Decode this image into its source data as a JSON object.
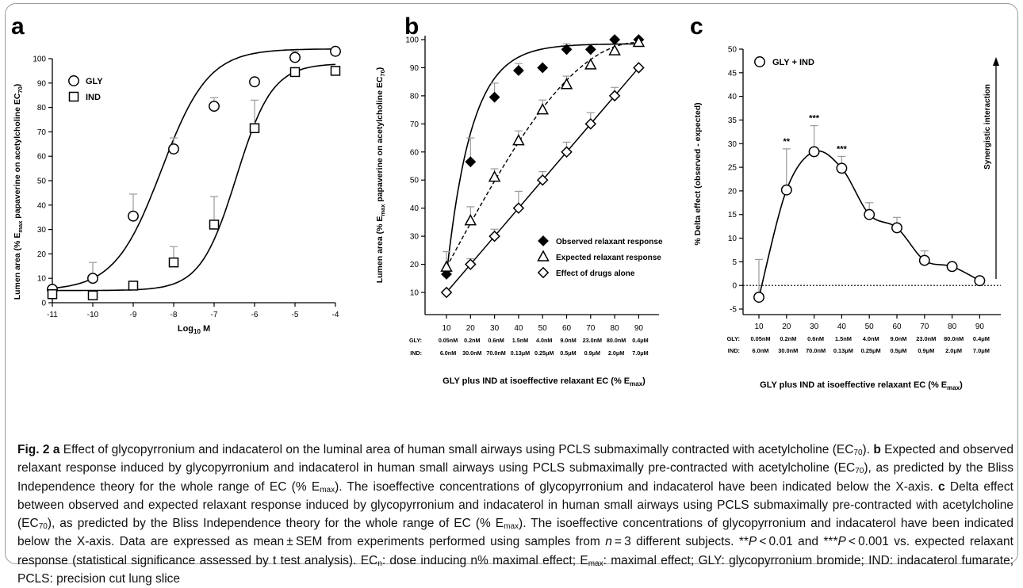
{
  "chart_data": [
    {
      "panel": "a",
      "type": "scatter",
      "xlabel": "Log10 M",
      "ylabel": "Lumen area (% Emax papaverine on acetylcholine EC70)",
      "xlim": [
        -11,
        -4
      ],
      "ylim": [
        0,
        100
      ],
      "xticks": [
        -11,
        -10,
        -9,
        -8,
        -7,
        -6,
        -5,
        -4
      ],
      "yticks": [
        0,
        10,
        20,
        30,
        40,
        50,
        60,
        70,
        80,
        90,
        100
      ],
      "legend": {
        "placement": "top-left"
      },
      "series": [
        {
          "name": "GLY",
          "marker": "circle",
          "x": [
            -11,
            -10,
            -9,
            -8,
            -7,
            -6,
            -5,
            -4
          ],
          "y": [
            5.5,
            10,
            35.5,
            63,
            80.5,
            90.5,
            100.5,
            103
          ],
          "err": [
            0,
            6.5,
            9,
            4.5,
            3.5,
            0,
            2.5,
            0
          ],
          "fit": {
            "bottom": 5,
            "top": 104,
            "logEC50": -8.3,
            "hill": 0.75
          }
        },
        {
          "name": "IND",
          "marker": "square",
          "x": [
            -11,
            -10,
            -9,
            -8,
            -7,
            -6,
            -5,
            -4
          ],
          "y": [
            3.5,
            3,
            7,
            16.5,
            32,
            71.5,
            94.5,
            95
          ],
          "err": [
            0,
            0,
            0,
            6.5,
            11.5,
            11.5,
            0,
            0
          ],
          "fit": {
            "bottom": 5,
            "top": 98,
            "logEC50": -6.45,
            "hill": 0.98
          }
        }
      ]
    },
    {
      "panel": "b",
      "type": "line",
      "xlabel": "GLY plus IND at isoeffective relaxant EC (% Emax)",
      "ylabel": "Lumen area (% Emax papaverine on acetylcholine EC70)",
      "categories": [
        "10",
        "20",
        "30",
        "40",
        "50",
        "60",
        "70",
        "80",
        "90"
      ],
      "gly_concentrations": [
        "0.05nM",
        "0.2nM",
        "0.6nM",
        "1.5nM",
        "4.0nM",
        "9.0nM",
        "23.0nM",
        "80.0nM",
        "0.4μM"
      ],
      "ind_concentrations": [
        "6.0nM",
        "30.0nM",
        "70.0nM",
        "0.13μM",
        "0.25μM",
        "0.5μM",
        "0.9μM",
        "2.0μM",
        "7.0μM"
      ],
      "ylim": [
        10,
        100
      ],
      "yticks": [
        10,
        20,
        30,
        40,
        50,
        60,
        70,
        80,
        90,
        100
      ],
      "legend": {
        "placement": "bottom-right"
      },
      "series": [
        {
          "name": "Observed relaxant response",
          "marker": "diamond-filled",
          "values": [
            16.5,
            56.5,
            79.5,
            89,
            90,
            96.5,
            96.5,
            100,
            100
          ],
          "err": [
            0,
            8.5,
            5,
            2.5,
            0,
            2,
            0,
            0,
            0
          ]
        },
        {
          "name": "Expected relaxant response",
          "marker": "triangle-open",
          "values": [
            19,
            35.5,
            51,
            64,
            75,
            84,
            91,
            96,
            99
          ],
          "err": [
            5.5,
            5,
            3,
            3.5,
            3.5,
            3,
            0,
            0,
            0
          ]
        },
        {
          "name": "Effect of drugs alone",
          "marker": "diamond-open",
          "values": [
            10,
            20,
            30,
            40,
            50,
            60,
            70,
            80,
            90
          ],
          "err": [
            0,
            2,
            2.5,
            6,
            3,
            3.5,
            4,
            3,
            0
          ]
        }
      ]
    },
    {
      "panel": "c",
      "type": "line",
      "xlabel": "GLY plus IND at isoeffective relaxant EC (% Emax)",
      "ylabel": "% Delta effect (observed - expected)",
      "categories": [
        "10",
        "20",
        "30",
        "40",
        "50",
        "60",
        "70",
        "80",
        "90"
      ],
      "gly_concentrations": [
        "0.05nM",
        "0.2nM",
        "0.6nM",
        "1.5nM",
        "4.0nM",
        "9.0nM",
        "23.0nM",
        "80.0nM",
        "0.4μM"
      ],
      "ind_concentrations": [
        "6.0nM",
        "30.0nM",
        "70.0nM",
        "0.13μM",
        "0.25μM",
        "0.5μM",
        "0.9μM",
        "2.0μM",
        "7.0μM"
      ],
      "ylim": [
        -5,
        50
      ],
      "yticks": [
        -5,
        0,
        5,
        10,
        15,
        20,
        25,
        30,
        35,
        40,
        45,
        50
      ],
      "legend": {
        "placement": "top-left"
      },
      "series": [
        {
          "name": "GLY + IND",
          "marker": "circle",
          "values": [
            -2.5,
            20.2,
            28.3,
            24.8,
            15,
            12.2,
            5.3,
            4,
            1
          ],
          "err": [
            8,
            8.7,
            5.5,
            2.5,
            2.5,
            2.2,
            2,
            0,
            0
          ]
        }
      ],
      "significance": [
        {
          "category": "20",
          "label": "**"
        },
        {
          "category": "30",
          "label": "***"
        },
        {
          "category": "40",
          "label": "***"
        }
      ],
      "reference_line": 0,
      "annotation": "Synergistic interaction"
    }
  ],
  "axis_text": {
    "a": {
      "log_base": "Log",
      "log_sub": "10",
      "log_unit": " M"
    },
    "ylabel_emax": {
      "pre": "Lumen area (% E",
      "sub1": "max",
      "mid": " papaverine on acetylcholine EC",
      "sub2": "70",
      "post": ")"
    },
    "xlabel_ec": {
      "pre": "GLY plus IND at isoeffective relaxant EC (% E",
      "sub": "max",
      "post": ")"
    },
    "row_gly": "GLY:",
    "row_ind": "IND:"
  },
  "panel_letters": {
    "a": "a",
    "b": "b",
    "c": "c"
  },
  "caption": {
    "fig_label": "Fig. 2",
    "a_letter": "a",
    "a_text": " Effect of glycopyrronium and indacaterol on the luminal area of human small airways using PCLS submaximally contracted with acetylcholine (EC",
    "a_sub": "70",
    "a_end": "). ",
    "b_letter": "b",
    "b_text": " Expected and observed relaxant response induced by glycopyrronium and indacaterol in human small airways using PCLS submaximally pre-contracted with acetylcholine (EC",
    "b_sub": "70",
    "b_mid": "), as predicted by the Bliss Independence theory for the whole range of EC (% E",
    "b_sub2": "max",
    "b_end": "). The isoeffective concentrations of glycopyrronium and indacaterol have been indicated below the X-axis. ",
    "c_letter": "c",
    "c_text": " Delta effect between observed and expected relaxant response induced by glycopyrronium and indacaterol in human small airways using PCLS submaximally pre-contracted with acetylcholine (EC",
    "c_sub": "70",
    "c_mid": "), as predicted by the Bliss Independence theory for the whole range of EC (% E",
    "c_sub2": "max",
    "c_end": "). The isoeffective concentrations of glycopyrronium and indacaterol have been indicated below the X-axis. Data are expressed as mean ± SEM from experiments performed using samples from ",
    "n_var": "n",
    "n_end": " = 3 different subjects. **",
    "p1": "P",
    "p1_end": " < 0.01 and ***",
    "p2": "P",
    "p2_end": " < 0.001 vs. expected relaxant response (statistical significance assessed by t test analysis). EC",
    "ecn_sub": "n",
    "ecn_end": ": dose inducing n% maximal effect; E",
    "emax_sub": "max",
    "emax_end": ": maximal effect; GLY: glycopyrronium bromide; IND: indacaterol fumarate; PCLS: precision cut lung slice"
  }
}
